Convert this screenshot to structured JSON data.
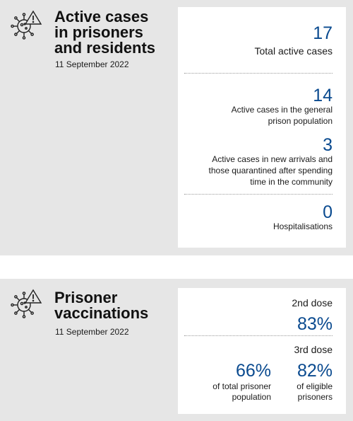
{
  "active_cases": {
    "title_lines": [
      "Active cases",
      "in prisoners",
      "and residents"
    ],
    "date": "11 September 2022",
    "stats": [
      {
        "value": "17",
        "label_lines": [
          "Total active cases"
        ]
      },
      {
        "value": "14",
        "label_lines": [
          "Active cases in the general",
          "prison population"
        ]
      },
      {
        "value": "3",
        "label_lines": [
          "Active cases in new arrivals and",
          "those quarantined after spending",
          "time in the community"
        ]
      },
      {
        "value": "0",
        "label_lines": [
          "Hospitalisations"
        ]
      }
    ]
  },
  "vaccinations": {
    "title_lines": [
      "Prisoner",
      "vaccinations"
    ],
    "date": "11 September 2022",
    "second_dose": {
      "label": "2nd dose",
      "value": "83%"
    },
    "third_dose": {
      "label": "3rd dose",
      "total": {
        "value": "66%",
        "label_lines": [
          "of total prisoner",
          "population"
        ]
      },
      "eligible": {
        "value": "82%",
        "label_lines": [
          "of eligible",
          "prisoners"
        ]
      }
    }
  },
  "icons": {
    "section_icon": "virus-warning-icon"
  },
  "colors": {
    "accent": "#0a4a8f",
    "panel_bg": "#e6e6e6",
    "card_bg": "#ffffff"
  }
}
